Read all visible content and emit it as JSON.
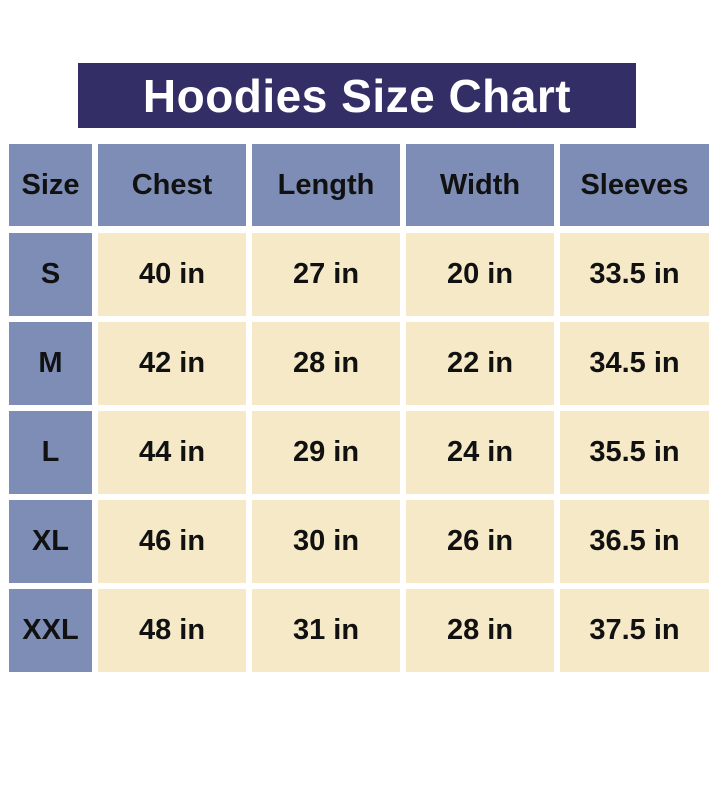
{
  "title": "Hoodies Size Chart",
  "colors": {
    "title_bg": "#332f66",
    "header_bg": "#7d8db5",
    "cell_bg": "#f5e9c8"
  },
  "headers": [
    "Size",
    "Chest",
    "Length",
    "Width",
    "Sleeves"
  ],
  "rows": [
    [
      "S",
      "40 in",
      "27 in",
      "20 in",
      "33.5 in"
    ],
    [
      "M",
      "42 in",
      "28 in",
      "22 in",
      "34.5 in"
    ],
    [
      "L",
      "44 in",
      "29 in",
      "24 in",
      "35.5 in"
    ],
    [
      "XL",
      "46 in",
      "30 in",
      "26 in",
      "36.5 in"
    ],
    [
      "XXL",
      "48 in",
      "31 in",
      "28 in",
      "37.5 in"
    ]
  ]
}
